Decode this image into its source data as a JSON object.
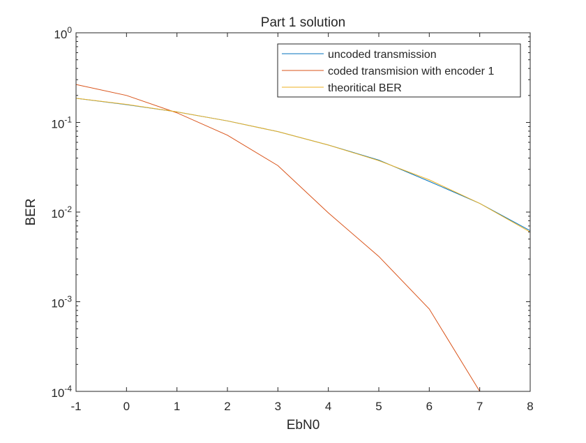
{
  "chart_data": {
    "type": "line",
    "title": "Part 1 solution",
    "xlabel": "EbN0",
    "ylabel": "BER",
    "xlim": [
      -1,
      8
    ],
    "ylim": [
      0.0001,
      1
    ],
    "yscale": "log",
    "grid": false,
    "legend_position": "top-right",
    "x_ticks": [
      -1,
      0,
      1,
      2,
      3,
      4,
      5,
      6,
      7,
      8
    ],
    "y_ticks": [
      {
        "value": 0.0001,
        "base": "10",
        "exp": "-4"
      },
      {
        "value": 0.001,
        "base": "10",
        "exp": "-3"
      },
      {
        "value": 0.01,
        "base": "10",
        "exp": "-2"
      },
      {
        "value": 0.1,
        "base": "10",
        "exp": "-1"
      },
      {
        "value": 1,
        "base": "10",
        "exp": "0"
      }
    ],
    "x": [
      -1,
      0,
      1,
      2,
      3,
      4,
      5,
      6,
      7,
      8
    ],
    "series": [
      {
        "name": "uncoded transmission",
        "color": "#0072BD",
        "x": [
          -1,
          0,
          1,
          2,
          3,
          4,
          5,
          6,
          7,
          8
        ],
        "values": [
          0.186,
          0.158,
          0.131,
          0.104,
          0.079,
          0.056,
          0.038,
          0.022,
          0.0125,
          0.0062
        ]
      },
      {
        "name": "coded transmision with encoder 1",
        "color": "#D95319",
        "x": [
          -1,
          0,
          1,
          2,
          3,
          4,
          5,
          6,
          7
        ],
        "values": [
          0.265,
          0.2,
          0.128,
          0.072,
          0.033,
          0.0098,
          0.0032,
          0.00083,
          0.0001
        ]
      },
      {
        "name": "theoritical BER",
        "color": "#EDB120",
        "x": [
          -1,
          0,
          1,
          2,
          3,
          4,
          5,
          6,
          7,
          8
        ],
        "values": [
          0.186,
          0.159,
          0.131,
          0.104,
          0.079,
          0.056,
          0.0375,
          0.0229,
          0.0125,
          0.006
        ]
      }
    ]
  }
}
